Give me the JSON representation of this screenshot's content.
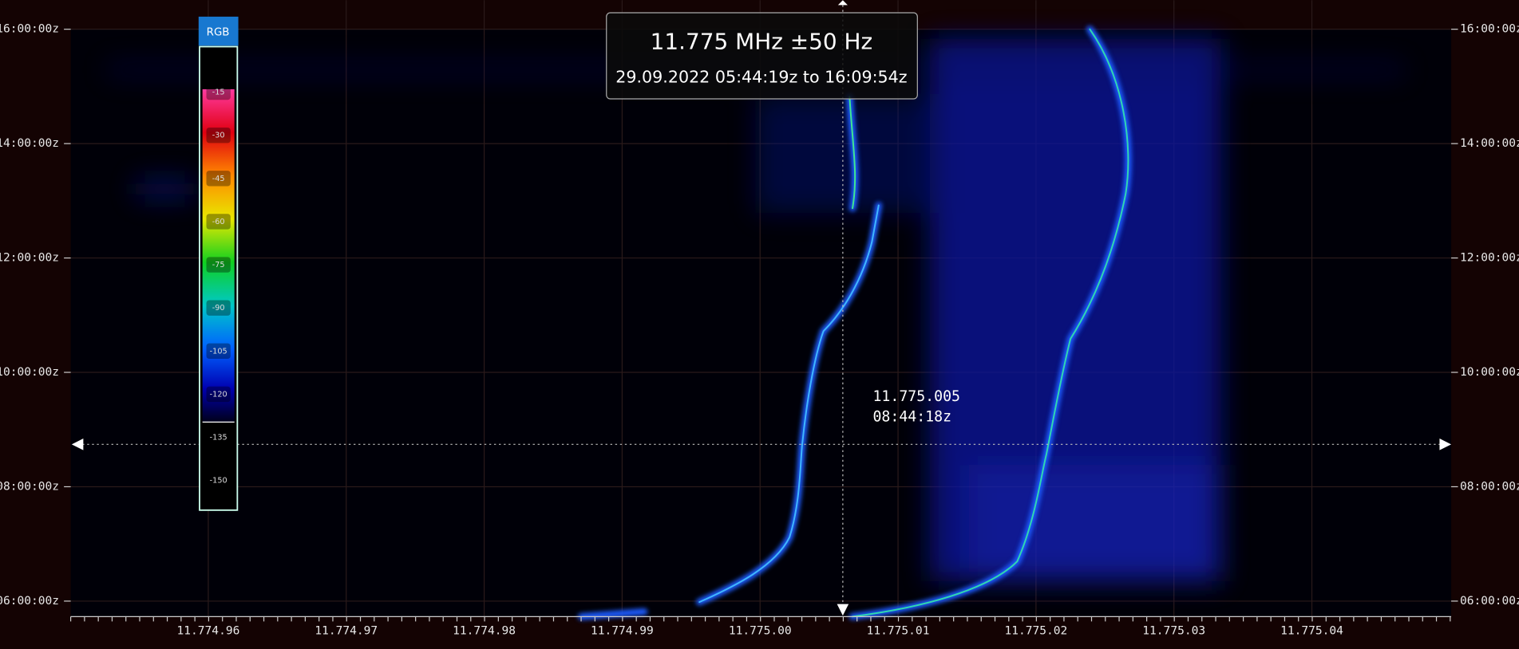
{
  "title": "11.775 MHz ±50 Hz",
  "subtitle": "29.09.2022 05:44:19z to 16:09:54z",
  "time_axis": {
    "labels": [
      "16:00:00z",
      "14:00:00z",
      "12:00:00z",
      "10:00:00z",
      "08:00:00z",
      "06:00:00z"
    ]
  },
  "frequency_axis": {
    "labels": [
      "11.774.96",
      "11.774.97",
      "11.774.98",
      "11.774.99",
      "11.775.00",
      "11.775.01",
      "11.775.02",
      "11.775.03",
      "11.775.04"
    ]
  },
  "colorbar": {
    "header": "RGB",
    "labels": [
      "-15",
      "-30",
      "-45",
      "-60",
      "-75",
      "-90",
      "-105",
      "-120",
      "-135",
      "-150"
    ]
  },
  "cursor": {
    "frequency": "11.775.005",
    "time": "08:44:18z"
  }
}
